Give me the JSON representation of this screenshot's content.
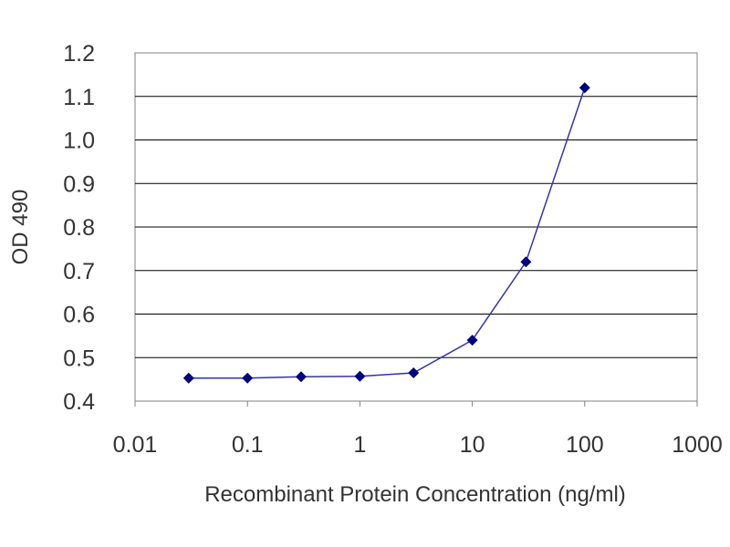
{
  "chart_data": {
    "type": "line",
    "title": "",
    "xlabel": "Recombinant Protein Concentration (ng/ml)",
    "ylabel": "OD 490",
    "x_scale": "log",
    "xlim": [
      0.01,
      1000
    ],
    "ylim": [
      0.4,
      1.2
    ],
    "x_ticks": [
      0.01,
      0.1,
      1,
      10,
      100,
      1000
    ],
    "x_tick_labels": [
      "0.01",
      "0.1",
      "1",
      "10",
      "100",
      "1000"
    ],
    "y_ticks": [
      0.4,
      0.5,
      0.6,
      0.7,
      0.8,
      0.9,
      1.0,
      1.1,
      1.2
    ],
    "y_tick_labels": [
      "0.4",
      "0.5",
      "0.6",
      "0.7",
      "0.8",
      "0.9",
      "1.0",
      "1.1",
      "1.2"
    ],
    "grid": "horizontal",
    "legend": "none",
    "series": [
      {
        "x": [
          0.03,
          0.1,
          0.3,
          1,
          3,
          10,
          30,
          100
        ],
        "y": [
          0.453,
          0.453,
          0.456,
          0.457,
          0.465,
          0.54,
          0.72,
          1.12
        ],
        "color": "#000080",
        "marker": "diamond"
      }
    ],
    "colors": {
      "line": "#3333aa",
      "marker": "#000080",
      "grid": "#000000",
      "plot_border": "#808080"
    }
  }
}
